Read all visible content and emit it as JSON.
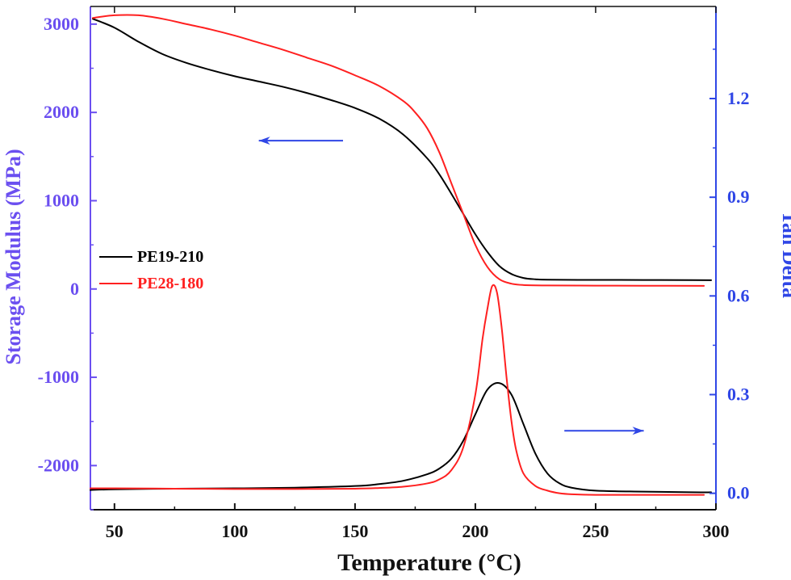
{
  "chart_data": {
    "type": "line",
    "title": "",
    "xlabel": "Temperature (°C)",
    "ylabel_left": "Storage Modulus (MPa)",
    "ylabel_right": "Tan Delta",
    "xlim": [
      40,
      300
    ],
    "ylim_left": [
      -2500,
      3200
    ],
    "ylim_right": [
      -0.05,
      1.48
    ],
    "x_ticks": [
      50,
      100,
      150,
      200,
      250,
      300
    ],
    "y_left_ticks": [
      -2000,
      -1000,
      0,
      1000,
      2000,
      3000
    ],
    "y_right_ticks": [
      "0.0",
      "0.3",
      "0.6",
      "0.9",
      "1.2"
    ],
    "grid": false,
    "legend_position": "middle-left",
    "colors": {
      "left_axis": "#6b4ff0",
      "right_axis": "#2f46e6",
      "PE19-210": "#000000",
      "PE28-180": "#ff2020",
      "arrow": "#2f46e6"
    },
    "arrows": [
      {
        "direction": "left",
        "axis": "left",
        "x_from": 145,
        "x_to": 110,
        "y": 1680
      },
      {
        "direction": "right",
        "axis": "right",
        "x_from": 237,
        "x_to": 270,
        "y": 0.19
      }
    ],
    "series": [
      {
        "name": "PE19-210",
        "axis": "left",
        "x": [
          41,
          50,
          60,
          70,
          80,
          90,
          100,
          110,
          120,
          130,
          140,
          150,
          160,
          170,
          180,
          185,
          190,
          195,
          200,
          205,
          210,
          215,
          220,
          225,
          230,
          250,
          270,
          290,
          298
        ],
        "values": [
          3060,
          2960,
          2800,
          2660,
          2560,
          2480,
          2410,
          2350,
          2290,
          2220,
          2140,
          2050,
          1930,
          1750,
          1480,
          1300,
          1080,
          850,
          620,
          420,
          260,
          170,
          125,
          110,
          105,
          103,
          102,
          101,
          100
        ]
      },
      {
        "name": "PE28-180",
        "axis": "left",
        "x": [
          41,
          50,
          60,
          70,
          80,
          90,
          100,
          110,
          120,
          130,
          140,
          150,
          160,
          170,
          175,
          180,
          185,
          190,
          195,
          200,
          205,
          210,
          215,
          220,
          230,
          250,
          270,
          295
        ],
        "values": [
          3070,
          3100,
          3100,
          3060,
          3000,
          2940,
          2870,
          2790,
          2710,
          2620,
          2530,
          2420,
          2300,
          2130,
          2000,
          1820,
          1550,
          1200,
          850,
          500,
          250,
          110,
          60,
          45,
          40,
          38,
          37,
          36
        ]
      },
      {
        "name": "PE19-210",
        "axis": "right",
        "x": [
          40,
          50,
          75,
          100,
          125,
          150,
          160,
          170,
          180,
          185,
          190,
          195,
          200,
          205,
          210,
          215,
          220,
          225,
          230,
          235,
          240,
          250,
          270,
          290,
          298
        ],
        "values": [
          0.01,
          0.012,
          0.014,
          0.015,
          0.017,
          0.022,
          0.028,
          0.038,
          0.058,
          0.075,
          0.105,
          0.16,
          0.24,
          0.315,
          0.335,
          0.3,
          0.21,
          0.12,
          0.06,
          0.03,
          0.017,
          0.008,
          0.005,
          0.003,
          0.003
        ]
      },
      {
        "name": "PE28-180",
        "axis": "right",
        "x": [
          40,
          50,
          75,
          100,
          125,
          150,
          160,
          170,
          180,
          185,
          190,
          195,
          200,
          203,
          205,
          207,
          209,
          211,
          213,
          215,
          217,
          220,
          225,
          230,
          235,
          240,
          250,
          270,
          295
        ],
        "values": [
          0.015,
          0.015,
          0.014,
          0.013,
          0.013,
          0.014,
          0.016,
          0.02,
          0.03,
          0.042,
          0.07,
          0.14,
          0.3,
          0.47,
          0.56,
          0.63,
          0.61,
          0.5,
          0.35,
          0.22,
          0.13,
          0.06,
          0.022,
          0.008,
          0.0,
          -0.003,
          -0.005,
          -0.005,
          -0.005
        ]
      }
    ]
  }
}
